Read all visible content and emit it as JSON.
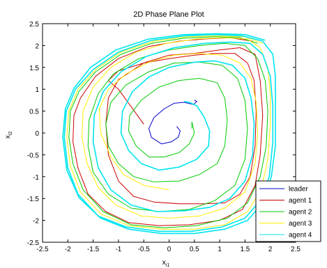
{
  "chart_data": {
    "type": "line",
    "title": "2D Phase Plane Plot",
    "xlabel": {
      "main": "x",
      "sub": "i1"
    },
    "ylabel": {
      "main": "x",
      "sub": "i2"
    },
    "xlim": [
      -2.5,
      2.5
    ],
    "ylim": [
      -2.5,
      2.5
    ],
    "xticks": [
      -2.5,
      -2,
      -1.5,
      -1,
      -0.5,
      0,
      0.5,
      1,
      1.5,
      2,
      2.5
    ],
    "yticks": [
      -2.5,
      -2,
      -1.5,
      -1,
      -0.5,
      0,
      0.5,
      1,
      1.5,
      2,
      2.5
    ],
    "xtick_labels": [
      "-2.5",
      "-2",
      "-1.5",
      "-1",
      "-0.5",
      "0",
      "0.5",
      "1",
      "1.5",
      "2",
      "2.5"
    ],
    "ytick_labels": [
      "-2.5",
      "-2",
      "-1.5",
      "-1",
      "-0.5",
      "0",
      "0.5",
      "1",
      "1.5",
      "2",
      "2.5"
    ],
    "grid": false,
    "legend_position": "bottom-right",
    "series": [
      {
        "name": "leader",
        "color": "#0000cc",
        "points": [
          [
            0.15,
            0.15
          ],
          [
            0.22,
            0.05
          ],
          [
            0.18,
            -0.1
          ],
          [
            0.05,
            -0.2
          ],
          [
            -0.15,
            -0.25
          ],
          [
            -0.35,
            -0.1
          ],
          [
            -0.4,
            0.1
          ],
          [
            -0.3,
            0.35
          ],
          [
            -0.1,
            0.55
          ],
          [
            0.1,
            0.68
          ],
          [
            0.3,
            0.7
          ],
          [
            0.48,
            0.65
          ],
          [
            0.55,
            0.72
          ],
          [
            0.5,
            0.75
          ]
        ]
      },
      {
        "name": "agent 1",
        "color": "#cc0000",
        "points": [
          [
            -0.5,
            0.2
          ],
          [
            -0.75,
            0.6
          ],
          [
            -1.0,
            1.0
          ],
          [
            -1.2,
            1.2
          ],
          [
            -1.0,
            1.42
          ],
          [
            -0.5,
            1.6
          ],
          [
            0.0,
            1.7
          ],
          [
            0.5,
            1.78
          ],
          [
            0.9,
            1.82
          ],
          [
            1.3,
            1.82
          ],
          [
            1.55,
            1.6
          ],
          [
            1.68,
            1.2
          ],
          [
            1.72,
            0.5
          ],
          [
            1.7,
            -0.3
          ],
          [
            1.6,
            -1.0
          ],
          [
            1.4,
            -1.4
          ],
          [
            1.1,
            -1.6
          ],
          [
            0.7,
            -1.62
          ],
          [
            0.2,
            -1.62
          ],
          [
            -0.3,
            -1.58
          ],
          [
            -0.7,
            -1.45
          ],
          [
            -1.0,
            -1.1
          ],
          [
            -1.2,
            -0.5
          ],
          [
            -1.25,
            0.2
          ],
          [
            -1.2,
            0.8
          ],
          [
            -1.0,
            1.22
          ],
          [
            -0.5,
            1.6
          ],
          [
            0.0,
            1.78
          ],
          [
            0.5,
            1.82
          ],
          [
            1.0,
            1.9
          ],
          [
            1.4,
            1.95
          ],
          [
            1.7,
            1.8
          ],
          [
            1.8,
            1.2
          ],
          [
            1.85,
            0.4
          ],
          [
            1.8,
            -0.5
          ],
          [
            1.7,
            -1.2
          ],
          [
            1.45,
            -1.75
          ],
          [
            1.0,
            -2.0
          ],
          [
            0.4,
            -2.1
          ],
          [
            -0.2,
            -2.12
          ],
          [
            -0.8,
            -2.05
          ],
          [
            -1.25,
            -1.8
          ],
          [
            -1.6,
            -1.4
          ],
          [
            -1.8,
            -0.8
          ],
          [
            -1.9,
            -0.2
          ],
          [
            -1.88,
            0.4
          ],
          [
            -1.75,
            0.8
          ],
          [
            -1.45,
            1.3
          ],
          [
            -1.0,
            1.7
          ],
          [
            -0.4,
            1.98
          ],
          [
            0.2,
            2.1
          ],
          [
            0.7,
            2.15
          ],
          [
            1.2,
            2.18
          ],
          [
            1.65,
            2.1
          ]
        ]
      },
      {
        "name": "agent 2",
        "color": "#00cc00",
        "points": [
          [
            0.45,
            0.1
          ],
          [
            0.45,
            0.2
          ],
          [
            0.45,
            0.25
          ],
          [
            0.5,
            0.0
          ],
          [
            0.4,
            -0.25
          ],
          [
            0.2,
            -0.45
          ],
          [
            -0.1,
            -0.55
          ],
          [
            -0.4,
            -0.55
          ],
          [
            -0.65,
            -0.3
          ],
          [
            -0.8,
            0.05
          ],
          [
            -0.78,
            0.4
          ],
          [
            -0.55,
            0.75
          ],
          [
            -0.2,
            1.05
          ],
          [
            0.2,
            1.2
          ],
          [
            0.6,
            1.25
          ],
          [
            0.95,
            1.15
          ],
          [
            1.1,
            0.8
          ],
          [
            1.15,
            0.3
          ],
          [
            1.1,
            -0.3
          ],
          [
            0.95,
            -0.7
          ],
          [
            0.6,
            -0.95
          ],
          [
            0.2,
            -1.1
          ],
          [
            -0.3,
            -1.12
          ],
          [
            -0.7,
            -1.0
          ],
          [
            -1.0,
            -0.7
          ],
          [
            -1.2,
            -0.3
          ],
          [
            -1.25,
            0.2
          ],
          [
            -1.15,
            0.7
          ],
          [
            -0.85,
            1.1
          ],
          [
            -0.4,
            1.4
          ],
          [
            0.1,
            1.6
          ],
          [
            0.6,
            1.62
          ],
          [
            1.05,
            1.55
          ],
          [
            1.35,
            1.25
          ],
          [
            1.5,
            0.75
          ],
          [
            1.55,
            0.1
          ],
          [
            1.5,
            -0.6
          ],
          [
            1.3,
            -1.2
          ],
          [
            0.9,
            -1.55
          ],
          [
            0.4,
            -1.75
          ],
          [
            -0.2,
            -1.8
          ],
          [
            -0.75,
            -1.72
          ],
          [
            -1.2,
            -1.4
          ],
          [
            -1.5,
            -0.9
          ],
          [
            -1.6,
            -0.3
          ],
          [
            -1.58,
            0.3
          ],
          [
            -1.4,
            0.9
          ],
          [
            -1.1,
            1.35
          ],
          [
            -0.6,
            1.7
          ],
          [
            0.0,
            1.9
          ],
          [
            0.6,
            2.0
          ],
          [
            1.1,
            2.05
          ],
          [
            1.5,
            2.0
          ],
          [
            1.75,
            1.7
          ],
          [
            1.9,
            1.2
          ],
          [
            1.95,
            0.5
          ],
          [
            1.92,
            -0.3
          ],
          [
            1.8,
            -1.0
          ],
          [
            1.55,
            -1.6
          ],
          [
            1.15,
            -1.95
          ],
          [
            0.55,
            -2.12
          ],
          [
            -0.1,
            -2.17
          ],
          [
            -0.75,
            -2.1
          ],
          [
            -1.3,
            -1.8
          ],
          [
            -1.7,
            -1.3
          ],
          [
            -1.9,
            -0.7
          ],
          [
            -1.98,
            -0.1
          ],
          [
            -1.95,
            0.5
          ],
          [
            -1.78,
            0.95
          ],
          [
            -1.45,
            1.4
          ],
          [
            -0.95,
            1.8
          ],
          [
            -0.35,
            2.05
          ],
          [
            0.3,
            2.17
          ],
          [
            0.9,
            2.2
          ],
          [
            1.4,
            2.18
          ],
          [
            1.75,
            2.05
          ]
        ]
      },
      {
        "name": "agent 3",
        "color": "#ffee00",
        "points": [
          [
            0.0,
            -1.3
          ],
          [
            -0.5,
            -1.2
          ],
          [
            -0.9,
            -0.95
          ],
          [
            -1.15,
            -0.55
          ],
          [
            -1.35,
            0.0
          ],
          [
            -1.38,
            0.55
          ],
          [
            -1.2,
            1.0
          ],
          [
            -0.85,
            1.35
          ],
          [
            -0.4,
            1.62
          ],
          [
            0.1,
            1.78
          ],
          [
            0.6,
            1.82
          ],
          [
            1.05,
            1.78
          ],
          [
            1.4,
            1.6
          ],
          [
            1.62,
            1.25
          ],
          [
            1.72,
            0.7
          ],
          [
            1.75,
            0.0
          ],
          [
            1.7,
            -0.7
          ],
          [
            1.5,
            -1.35
          ],
          [
            1.1,
            -1.72
          ],
          [
            0.6,
            -1.9
          ],
          [
            0.0,
            -1.95
          ],
          [
            -0.55,
            -1.9
          ],
          [
            -1.05,
            -1.65
          ],
          [
            -1.4,
            -1.25
          ],
          [
            -1.62,
            -0.7
          ],
          [
            -1.72,
            -0.1
          ],
          [
            -1.7,
            0.5
          ],
          [
            -1.5,
            1.05
          ],
          [
            -1.15,
            1.5
          ],
          [
            -0.65,
            1.85
          ],
          [
            -0.05,
            2.05
          ],
          [
            0.55,
            2.15
          ],
          [
            1.1,
            2.18
          ],
          [
            1.55,
            2.15
          ],
          [
            1.8,
            1.95
          ],
          [
            1.95,
            1.5
          ],
          [
            2.0,
            0.9
          ],
          [
            2.0,
            0.2
          ],
          [
            1.95,
            -0.6
          ],
          [
            1.82,
            -1.3
          ],
          [
            1.55,
            -1.8
          ],
          [
            1.1,
            -2.1
          ],
          [
            0.5,
            -2.2
          ],
          [
            -0.15,
            -2.2
          ],
          [
            -0.8,
            -2.12
          ],
          [
            -1.35,
            -1.85
          ],
          [
            -1.75,
            -1.35
          ],
          [
            -1.95,
            -0.75
          ],
          [
            -2.02,
            -0.1
          ],
          [
            -1.98,
            0.5
          ],
          [
            -1.8,
            1.0
          ],
          [
            -1.45,
            1.45
          ],
          [
            -0.95,
            1.85
          ],
          [
            -0.3,
            2.1
          ],
          [
            0.35,
            2.2
          ],
          [
            0.95,
            2.22
          ],
          [
            1.5,
            2.2
          ],
          [
            1.85,
            2.05
          ]
        ]
      },
      {
        "name": "agent 4",
        "color": "#00e5ee",
        "points": [
          [
            0.3,
            0.72
          ],
          [
            0.4,
            0.7
          ],
          [
            0.55,
            0.62
          ],
          [
            0.7,
            0.35
          ],
          [
            0.8,
            0.05
          ],
          [
            0.78,
            -0.3
          ],
          [
            0.55,
            -0.6
          ],
          [
            0.2,
            -0.78
          ],
          [
            -0.2,
            -0.85
          ],
          [
            -0.55,
            -0.7
          ],
          [
            -0.8,
            -0.4
          ],
          [
            -0.95,
            0.0
          ],
          [
            -0.92,
            0.5
          ],
          [
            -0.72,
            0.95
          ],
          [
            -0.4,
            1.28
          ],
          [
            0.0,
            1.5
          ],
          [
            0.5,
            1.62
          ],
          [
            0.9,
            1.65
          ],
          [
            1.25,
            1.55
          ],
          [
            1.5,
            1.25
          ],
          [
            1.62,
            0.8
          ],
          [
            1.68,
            0.2
          ],
          [
            1.65,
            -0.5
          ],
          [
            1.5,
            -1.1
          ],
          [
            1.2,
            -1.5
          ],
          [
            0.8,
            -1.7
          ],
          [
            0.3,
            -1.78
          ],
          [
            -0.25,
            -1.8
          ],
          [
            -0.75,
            -1.65
          ],
          [
            -1.15,
            -1.3
          ],
          [
            -1.4,
            -0.8
          ],
          [
            -1.5,
            -0.2
          ],
          [
            -1.48,
            0.4
          ],
          [
            -1.3,
            0.95
          ],
          [
            -0.95,
            1.4
          ],
          [
            -0.45,
            1.75
          ],
          [
            0.1,
            1.95
          ],
          [
            0.7,
            2.05
          ],
          [
            1.2,
            2.08
          ],
          [
            1.6,
            2.05
          ],
          [
            1.85,
            1.8
          ],
          [
            2.0,
            1.3
          ],
          [
            2.05,
            0.6
          ],
          [
            2.05,
            -0.2
          ],
          [
            1.98,
            -1.0
          ],
          [
            1.8,
            -1.55
          ],
          [
            1.5,
            -1.95
          ],
          [
            1.05,
            -2.15
          ],
          [
            0.45,
            -2.25
          ],
          [
            -0.2,
            -2.25
          ],
          [
            -0.85,
            -2.15
          ],
          [
            -1.4,
            -1.9
          ],
          [
            -1.8,
            -1.4
          ],
          [
            -2.0,
            -0.8
          ],
          [
            -2.07,
            -0.1
          ],
          [
            -2.03,
            0.5
          ],
          [
            -1.85,
            1.0
          ],
          [
            -1.5,
            1.45
          ],
          [
            -1.0,
            1.85
          ],
          [
            -0.35,
            2.12
          ],
          [
            0.3,
            2.22
          ],
          [
            0.9,
            2.25
          ],
          [
            1.45,
            2.22
          ],
          [
            1.85,
            2.1
          ],
          [
            2.05,
            1.8
          ],
          [
            2.1,
            1.3
          ],
          [
            2.1,
            0.5
          ],
          [
            2.1,
            -0.3
          ],
          [
            2.02,
            -1.0
          ],
          [
            1.85,
            -1.6
          ],
          [
            1.55,
            -2.0
          ],
          [
            1.1,
            -2.2
          ],
          [
            0.5,
            -2.3
          ],
          [
            -0.15,
            -2.3
          ],
          [
            -0.8,
            -2.2
          ],
          [
            -1.35,
            -1.95
          ],
          [
            -1.78,
            -1.48
          ],
          [
            -2.02,
            -0.85
          ],
          [
            -2.1,
            -0.1
          ],
          [
            -2.05,
            0.55
          ],
          [
            -1.88,
            1.02
          ],
          [
            -1.55,
            1.5
          ],
          [
            -1.05,
            1.9
          ],
          [
            -0.4,
            2.15
          ],
          [
            0.3,
            2.25
          ],
          [
            0.95,
            2.27
          ],
          [
            1.5,
            2.25
          ],
          [
            1.9,
            2.12
          ]
        ]
      }
    ]
  }
}
